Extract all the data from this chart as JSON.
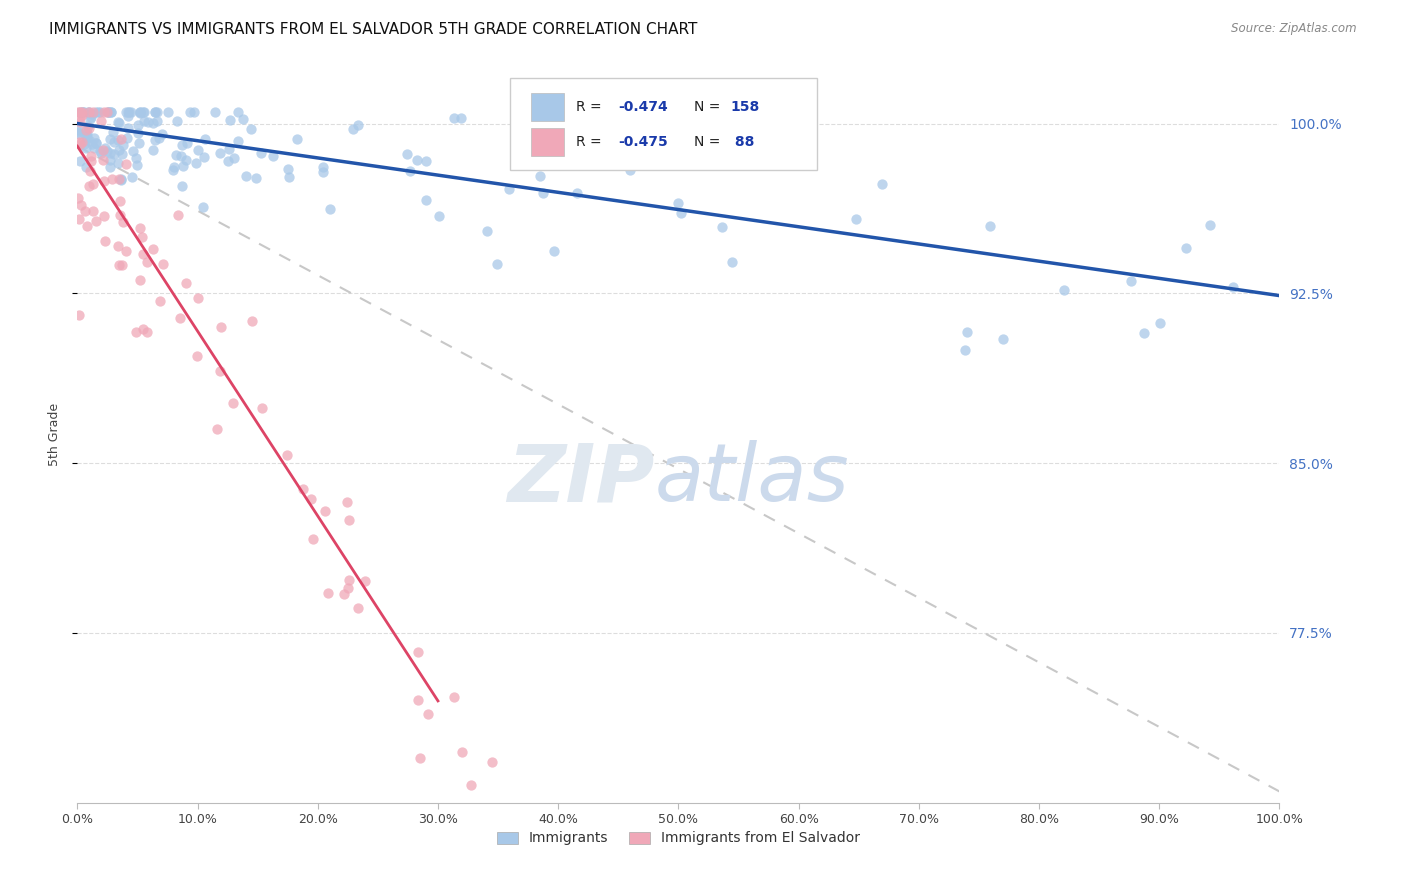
{
  "title": "IMMIGRANTS VS IMMIGRANTS FROM EL SALVADOR 5TH GRADE CORRELATION CHART",
  "source": "Source: ZipAtlas.com",
  "ylabel": "5th Grade",
  "xlim": [
    0.0,
    1.0
  ],
  "ylim": [
    0.7,
    1.025
  ],
  "blue_R": -0.474,
  "blue_N": 158,
  "pink_R": -0.475,
  "pink_N": 88,
  "blue_color": "#a8c8e8",
  "pink_color": "#f0a8b8",
  "blue_line_color": "#2255aa",
  "pink_line_color": "#dd4466",
  "dash_line_color": "#c8c8c8",
  "legend_label_blue": "Immigrants",
  "legend_label_pink": "Immigrants from El Salvador",
  "ytick_positions": [
    0.775,
    0.85,
    0.925,
    1.0
  ],
  "ytick_labels": [
    "77.5%",
    "85.0%",
    "92.5%",
    "100.0%"
  ],
  "xtick_positions": [
    0.0,
    0.1,
    0.2,
    0.3,
    0.4,
    0.5,
    0.6,
    0.7,
    0.8,
    0.9,
    1.0
  ],
  "xtick_labels": [
    "0.0%",
    "10.0%",
    "20.0%",
    "30.0%",
    "40.0%",
    "50.0%",
    "60.0%",
    "70.0%",
    "80.0%",
    "90.0%",
    "100.0%"
  ],
  "blue_trend_x0": 0.0,
  "blue_trend_y0": 1.0,
  "blue_trend_x1": 1.0,
  "blue_trend_y1": 0.924,
  "pink_trend_x0": 0.0,
  "pink_trend_y0": 0.99,
  "pink_trend_x1": 0.3,
  "pink_trend_y1": 0.745,
  "dash_trend_x0": 0.0,
  "dash_trend_y0": 0.99,
  "dash_trend_x1": 1.0,
  "dash_trend_y1": 0.705,
  "seed": 12345
}
